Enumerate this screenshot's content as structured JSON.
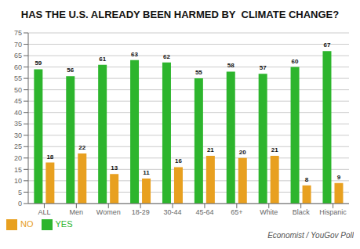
{
  "chart_data": {
    "type": "bar",
    "title": "HAS THE U.S. ALREADY BEEN HARMED BY  CLIMATE CHANGE?",
    "categories": [
      "ALL",
      "Men",
      "Women",
      "18-29",
      "30-44",
      "45-64",
      "65+",
      "White",
      "Black",
      "Hispanic"
    ],
    "series": [
      {
        "name": "YES",
        "color": "#2DB52D",
        "values": [
          59,
          56,
          61,
          63,
          62,
          55,
          58,
          57,
          60,
          67
        ]
      },
      {
        "name": "NO",
        "color": "#E8A020",
        "values": [
          18,
          22,
          13,
          11,
          16,
          21,
          20,
          21,
          8,
          9
        ]
      }
    ],
    "ylim": [
      0,
      75
    ],
    "yticks": [
      0,
      5,
      10,
      15,
      20,
      25,
      30,
      35,
      40,
      45,
      50,
      55,
      60,
      65,
      70,
      75
    ],
    "grid": true,
    "legend": "lower left",
    "data_labels": true,
    "annotations": [
      "Economist / YouGov Poll"
    ]
  }
}
